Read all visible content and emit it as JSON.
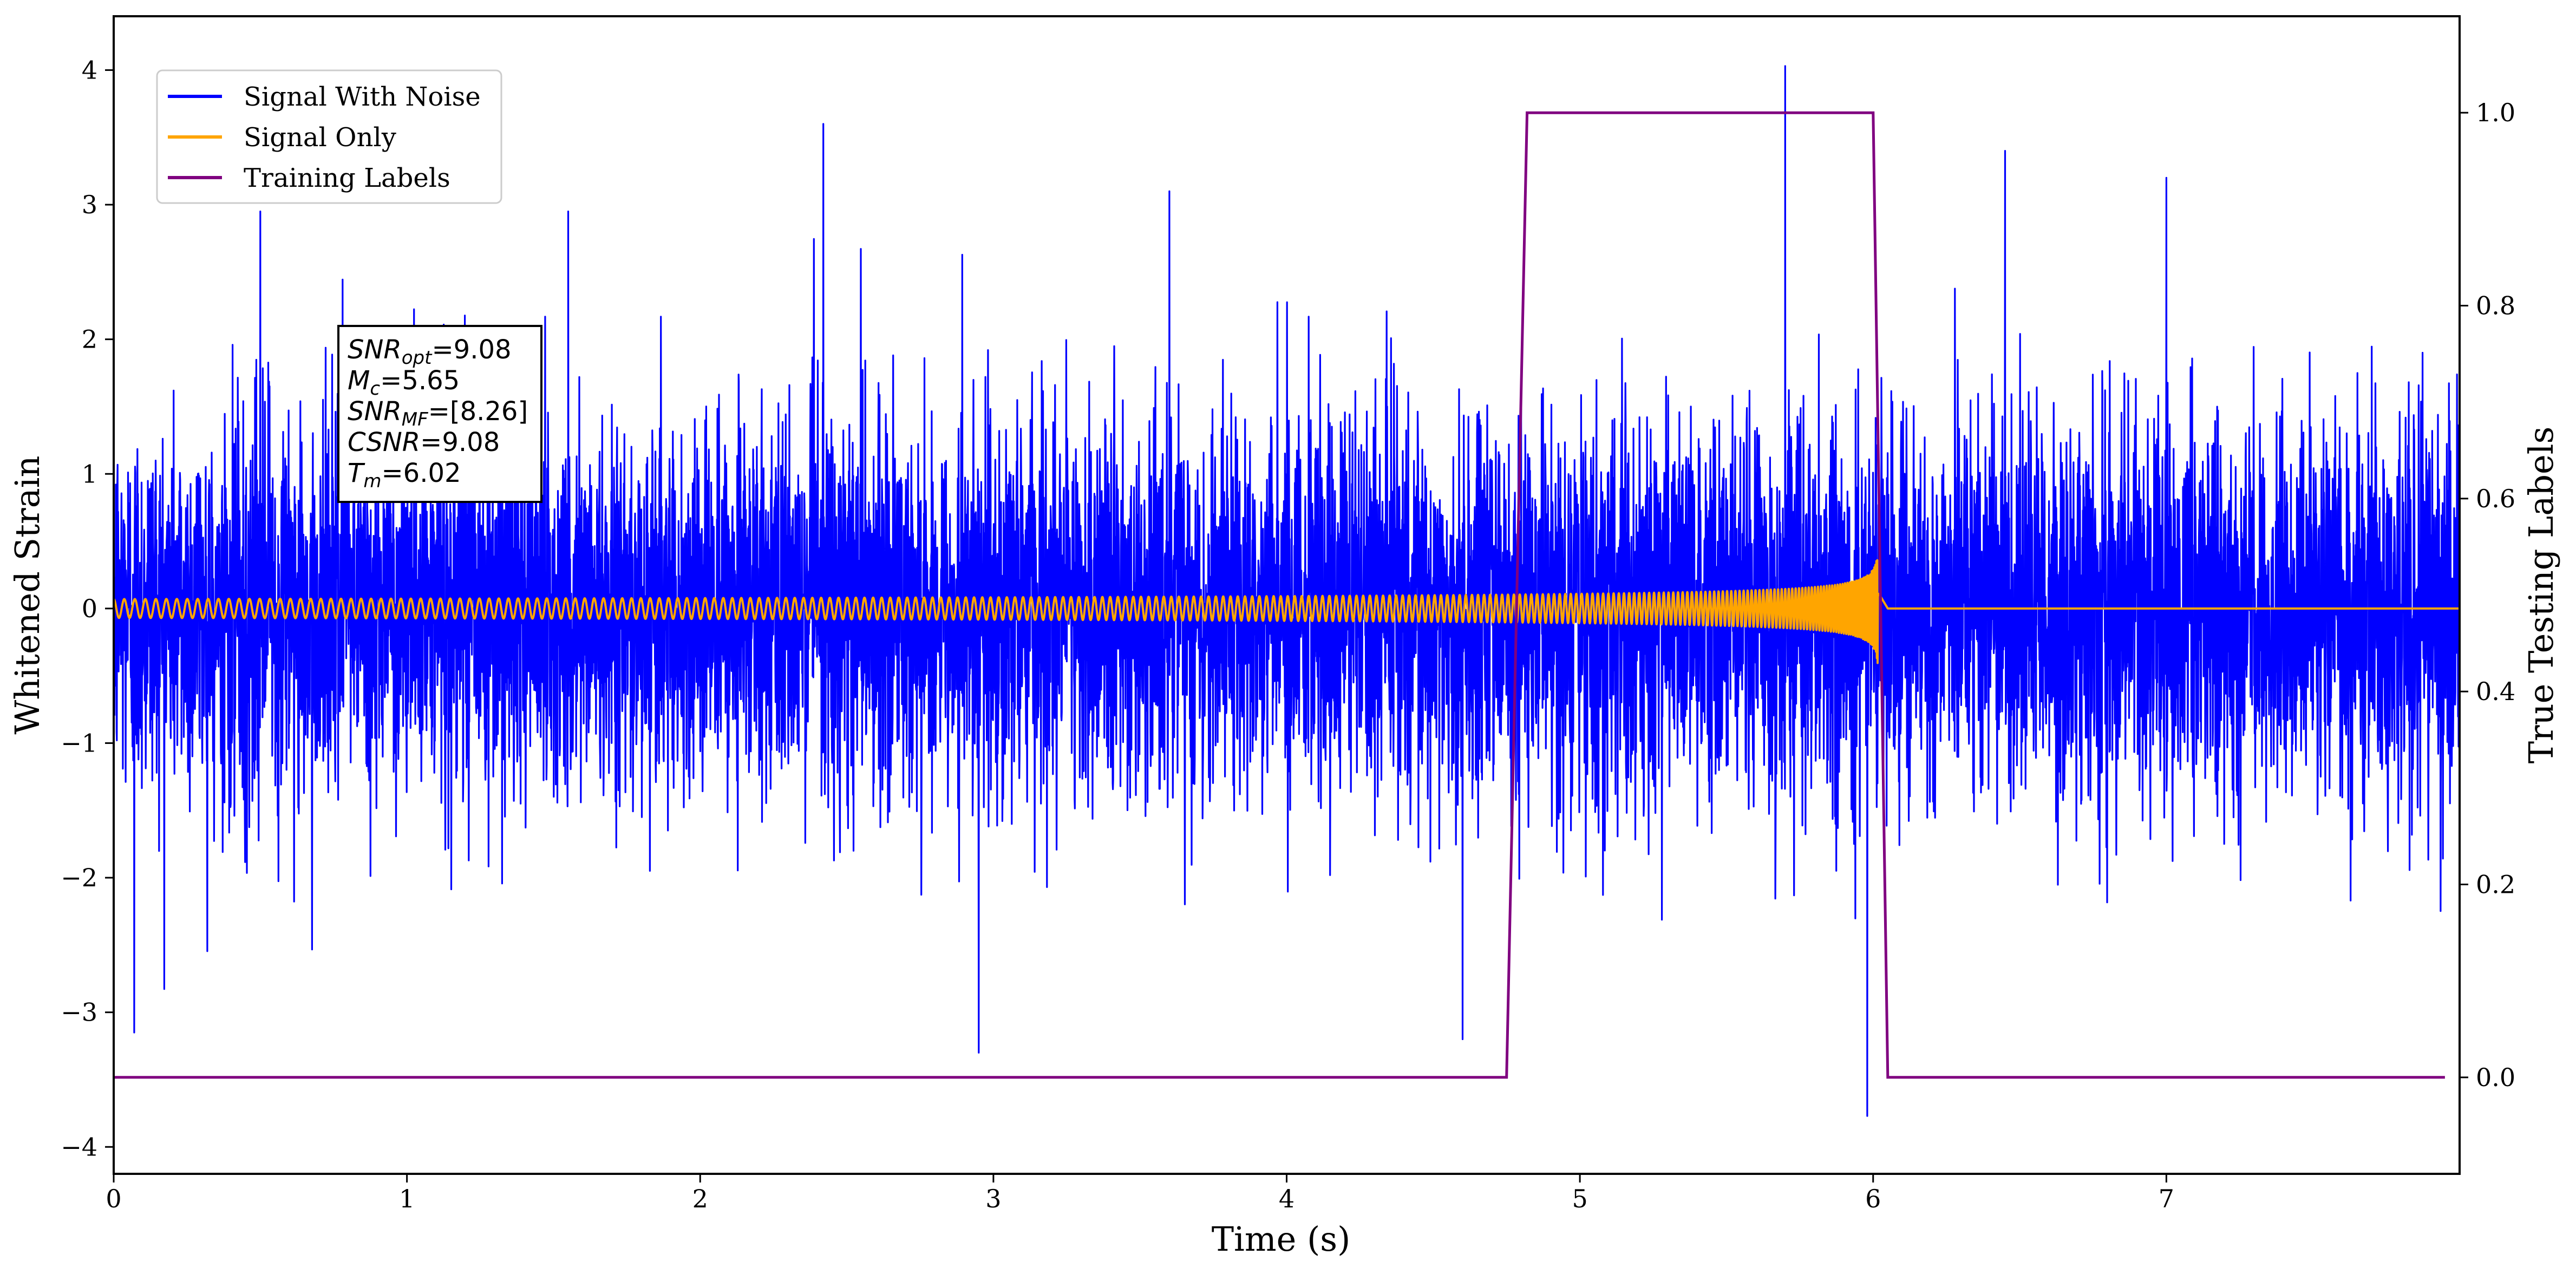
{
  "chart_data": {
    "type": "line",
    "xlabel": "Time (s)",
    "ylabel": "Whitened Strain",
    "ylabel_right": "True Testing Labels",
    "xlim": [
      0,
      8
    ],
    "ylim_left": [
      -4.2,
      4.4
    ],
    "ylim_right": [
      -0.1,
      1.1
    ],
    "x_ticks": [
      "0",
      "1",
      "2",
      "3",
      "4",
      "5",
      "6",
      "7"
    ],
    "y_ticks_left": [
      "−4",
      "−3",
      "−2",
      "−1",
      "0",
      "1",
      "2",
      "3",
      "4"
    ],
    "y_ticks_right": [
      "0.0",
      "0.2",
      "0.4",
      "0.6",
      "0.8",
      "1.0"
    ],
    "legend_placement": "upper-left",
    "grid": false,
    "series": [
      {
        "name": "Signal With Noise",
        "color": "#0000ff",
        "axis": "left",
        "description_values": {
          "noise_std": 0.7,
          "peak_max": 4.03,
          "peak_min": -3.77
        },
        "notable_peaks": [
          [
            0.5,
            2.95
          ],
          [
            1.55,
            2.95
          ],
          [
            2.42,
            3.6
          ],
          [
            3.6,
            3.1
          ],
          [
            5.7,
            4.03
          ],
          [
            6.45,
            3.4
          ],
          [
            7.0,
            3.2
          ],
          [
            0.07,
            -3.15
          ],
          [
            2.95,
            -3.3
          ],
          [
            4.6,
            -3.2
          ],
          [
            5.98,
            -3.77
          ]
        ]
      },
      {
        "name": "Signal Only",
        "color": "#ffa500",
        "axis": "left",
        "chirp": {
          "start_amp": 0.07,
          "peak_amp": 0.75,
          "merger_time": 6.02,
          "end_time": 6.05,
          "after_value": 0.0
        }
      },
      {
        "name": "Training Labels",
        "color": "#800080",
        "axis": "right",
        "x": [
          0,
          4.75,
          4.82,
          6.0,
          6.05,
          7.95
        ],
        "y": [
          0,
          0,
          1,
          1,
          0,
          0
        ]
      }
    ],
    "annotation": {
      "lines": [
        {
          "sym": "SNR",
          "sub": "opt",
          "rest": "=9.08"
        },
        {
          "sym": "M",
          "sub": "c",
          "rest": "=5.65"
        },
        {
          "sym": "SNR",
          "sub": "MF",
          "rest": "=[8.26]"
        },
        {
          "sym": "CSNR",
          "sub": "",
          "rest": "=9.08"
        },
        {
          "sym": "T",
          "sub": "m",
          "rest": "=6.02"
        }
      ]
    }
  }
}
